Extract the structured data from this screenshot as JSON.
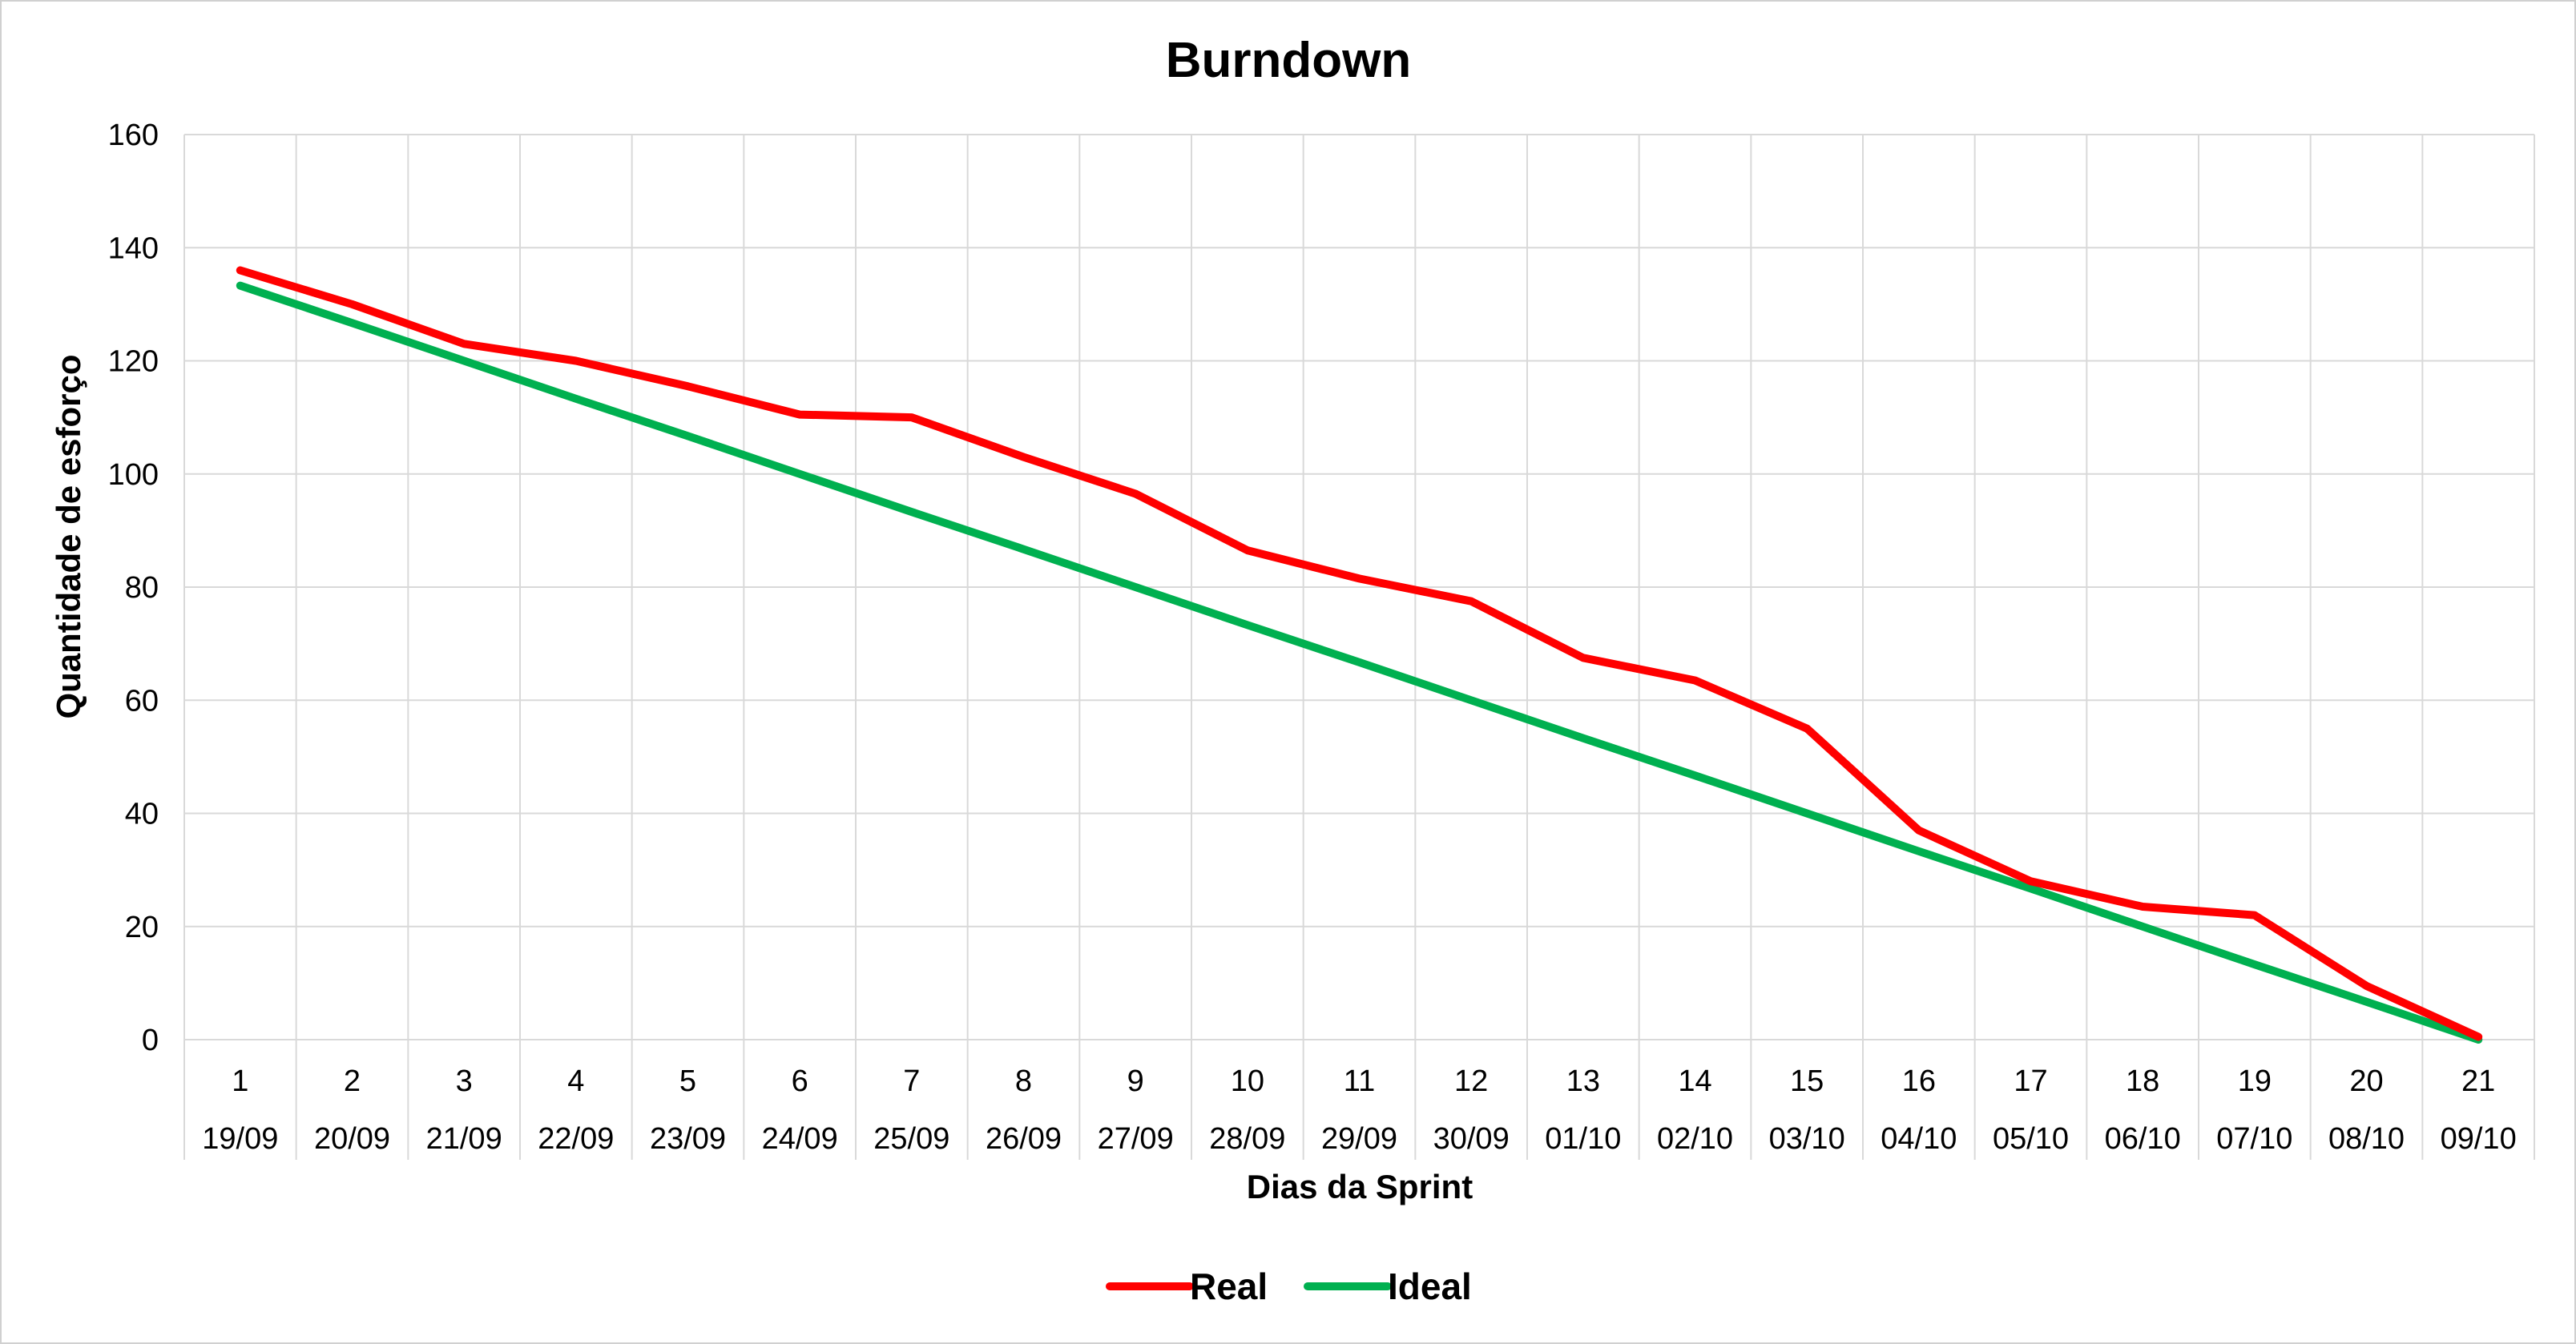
{
  "chart_data": {
    "type": "line",
    "title": "Burndown",
    "xlabel": "Dias da Sprint",
    "ylabel": "Quantidade de esforço",
    "ylim": [
      0,
      160
    ],
    "yticks": [
      0,
      20,
      40,
      60,
      80,
      100,
      120,
      140,
      160
    ],
    "categories": [
      "1",
      "2",
      "3",
      "4",
      "5",
      "6",
      "7",
      "8",
      "9",
      "10",
      "11",
      "12",
      "13",
      "14",
      "15",
      "16",
      "17",
      "18",
      "19",
      "20",
      "21"
    ],
    "dates": [
      "19/09",
      "20/09",
      "21/09",
      "22/09",
      "23/09",
      "24/09",
      "25/09",
      "26/09",
      "27/09",
      "28/09",
      "29/09",
      "30/09",
      "01/10",
      "02/10",
      "03/10",
      "04/10",
      "05/10",
      "06/10",
      "07/10",
      "08/10",
      "09/10"
    ],
    "grid": true,
    "legend_position": "bottom",
    "series": [
      {
        "name": "Real",
        "color": "#ff0000",
        "values": [
          136,
          130,
          123,
          120,
          115.5,
          110.5,
          110,
          103,
          96.5,
          86.5,
          81.5,
          77.5,
          67.5,
          63.5,
          55,
          37,
          28,
          23.5,
          22,
          9.5,
          0.5
        ]
      },
      {
        "name": "Ideal",
        "color": "#00b050",
        "values": [
          133.3,
          126.7,
          120,
          113.3,
          106.7,
          100,
          93.3,
          86.7,
          80,
          73.3,
          66.7,
          60,
          53.3,
          46.7,
          40,
          33.3,
          26.7,
          20,
          13.3,
          6.7,
          0
        ]
      }
    ]
  }
}
